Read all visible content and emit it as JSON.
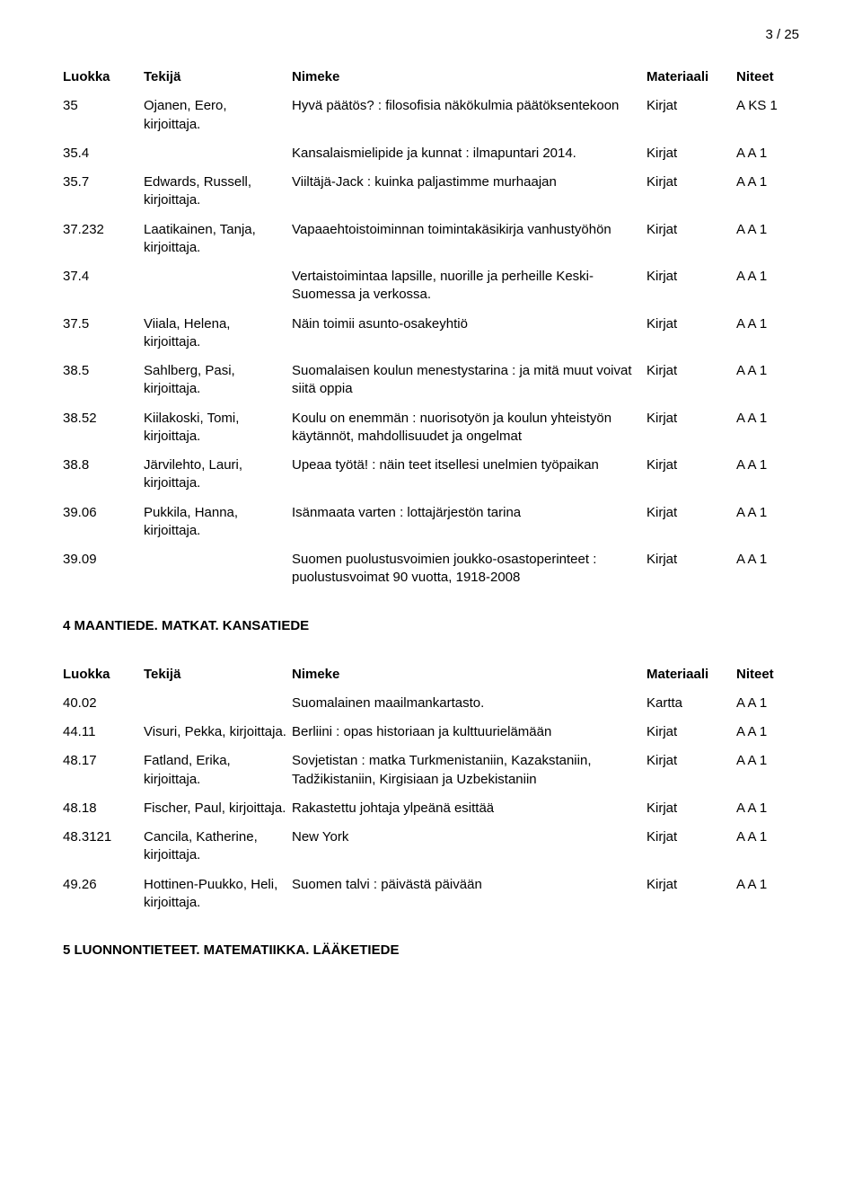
{
  "page_number": "3 / 25",
  "headers": {
    "luokka": "Luokka",
    "tekija": "Tekijä",
    "nimeke": "Nimeke",
    "materiaali": "Materiaali",
    "niteet": "Niteet"
  },
  "section1_rows": [
    {
      "luokka": "35",
      "tekija": "Ojanen, Eero, kirjoittaja.",
      "nimeke": "Hyvä päätös? : filosofisia näkökulmia päätöksentekoon",
      "mat": "Kirjat",
      "niteet": "A KS 1"
    },
    {
      "luokka": "35.4",
      "tekija": "",
      "nimeke": "Kansalaismielipide ja kunnat : ilmapuntari 2014.",
      "mat": "Kirjat",
      "niteet": "A A 1"
    },
    {
      "luokka": "35.7",
      "tekija": "Edwards, Russell, kirjoittaja.",
      "nimeke": "Viiltäjä-Jack : kuinka paljastimme murhaajan",
      "mat": "Kirjat",
      "niteet": "A A 1"
    },
    {
      "luokka": "37.232",
      "tekija": "Laatikainen, Tanja, kirjoittaja.",
      "nimeke": "Vapaaehtoistoiminnan toimintakäsikirja vanhustyöhön",
      "mat": "Kirjat",
      "niteet": "A A 1"
    },
    {
      "luokka": "37.4",
      "tekija": "",
      "nimeke": "Vertaistoimintaa lapsille, nuorille ja perheille Keski-Suomessa ja verkossa.",
      "mat": "Kirjat",
      "niteet": "A A 1"
    },
    {
      "luokka": "37.5",
      "tekija": "Viiala, Helena, kirjoittaja.",
      "nimeke": "Näin toimii asunto-osakeyhtiö",
      "mat": "Kirjat",
      "niteet": "A A 1"
    },
    {
      "luokka": "38.5",
      "tekija": "Sahlberg, Pasi, kirjoittaja.",
      "nimeke": "Suomalaisen koulun menestystarina : ja mitä muut voivat siitä oppia",
      "mat": "Kirjat",
      "niteet": "A A 1"
    },
    {
      "luokka": "38.52",
      "tekija": "Kiilakoski, Tomi, kirjoittaja.",
      "nimeke": "Koulu on enemmän : nuorisotyön ja koulun yhteistyön käytännöt, mahdollisuudet ja ongelmat",
      "mat": "Kirjat",
      "niteet": "A A 1"
    },
    {
      "luokka": "38.8",
      "tekija": "Järvilehto, Lauri, kirjoittaja.",
      "nimeke": "Upeaa työtä! : näin teet itsellesi unelmien työpaikan",
      "mat": "Kirjat",
      "niteet": "A A 1"
    },
    {
      "luokka": "39.06",
      "tekija": "Pukkila, Hanna, kirjoittaja.",
      "nimeke": "Isänmaata varten : lottajärjestön tarina",
      "mat": "Kirjat",
      "niteet": "A A 1"
    },
    {
      "luokka": "39.09",
      "tekija": "",
      "nimeke": "Suomen puolustusvoimien joukko-osastoperinteet : puolustusvoimat 90 vuotta, 1918-2008",
      "mat": "Kirjat",
      "niteet": "A A 1"
    }
  ],
  "section2_title": "4 MAANTIEDE. MATKAT. KANSATIEDE",
  "section2_rows": [
    {
      "luokka": "40.02",
      "tekija": "",
      "nimeke": "Suomalainen maailmankartasto.",
      "mat": "Kartta",
      "niteet": "A A 1"
    },
    {
      "luokka": "44.11",
      "tekija": "Visuri, Pekka, kirjoittaja.",
      "nimeke": "Berliini : opas historiaan ja kulttuurielämään",
      "mat": "Kirjat",
      "niteet": "A A 1"
    },
    {
      "luokka": "48.17",
      "tekija": "Fatland, Erika, kirjoittaja.",
      "nimeke": "Sovjetistan : matka Turkmenistaniin, Kazakstaniin, Tadžikistaniin, Kirgisiaan ja Uzbekistaniin",
      "mat": "Kirjat",
      "niteet": "A A 1"
    },
    {
      "luokka": "48.18",
      "tekija": "Fischer, Paul, kirjoittaja.",
      "nimeke": "Rakastettu johtaja ylpeänä esittää",
      "mat": "Kirjat",
      "niteet": "A A 1"
    },
    {
      "luokka": "48.3121",
      "tekija": "Cancila, Katherine, kirjoittaja.",
      "nimeke": "New York",
      "mat": "Kirjat",
      "niteet": "A A 1"
    },
    {
      "luokka": "49.26",
      "tekija": "Hottinen-Puukko, Heli, kirjoittaja.",
      "nimeke": "Suomen talvi : päivästä päivään",
      "mat": "Kirjat",
      "niteet": "A A 1"
    }
  ],
  "section3_title": "5 LUONNONTIETEET. MATEMATIIKKA. LÄÄKETIEDE"
}
